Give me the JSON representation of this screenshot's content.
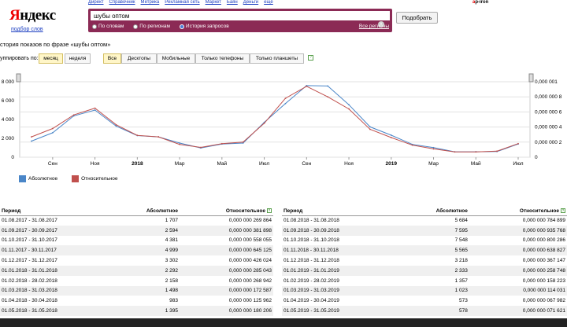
{
  "topnav": [
    "Директ",
    "Справочник",
    "Метрика",
    "Рекламная сеть",
    "Маркет",
    "Баян",
    "Деньги",
    "ещё"
  ],
  "user": "ap-iron",
  "logo": {
    "first": "Я",
    "rest": "ндекс",
    "sub": "подбор слов"
  },
  "search": {
    "value": "шубы оптом",
    "clear": "×",
    "radios": [
      "По словам",
      "По регионам",
      "История запросов"
    ],
    "selected_radio": "История запросов",
    "regions_link": "Все регионы",
    "button": "Подобрать"
  },
  "phrase_title": "стория показов по фразе «шубы оптом»",
  "group": {
    "label": "уппировать по:",
    "period": [
      "месяц",
      "неделя"
    ],
    "active_period": "месяц",
    "devices": [
      "Все",
      "Десктопы",
      "Мобильные",
      "Только телефоны",
      "Только планшеты"
    ],
    "active_device": "Все",
    "help": "?"
  },
  "chart_data": {
    "type": "line",
    "x": [
      "2017-08",
      "2017-09",
      "2017-10",
      "2017-11",
      "2017-12",
      "2018-01",
      "2018-02",
      "2018-03",
      "2018-04",
      "2018-05",
      "2018-06",
      "2018-07",
      "2018-08",
      "2018-09",
      "2018-10",
      "2018-11",
      "2018-12",
      "2019-01",
      "2019-02",
      "2019-03",
      "2019-04",
      "2019-05",
      "2019-06",
      "2019-07"
    ],
    "x_tick_labels": [
      "Сен",
      "Ноя",
      "2018",
      "Мар",
      "Май",
      "Июл",
      "Сен",
      "Ноя",
      "2019",
      "Мар",
      "Май",
      "Июл"
    ],
    "y_left_ticks": [
      "0",
      "2 000",
      "4 000",
      "6 000",
      "8 000"
    ],
    "y_right_ticks": [
      "0",
      "0,000 000 2",
      "0,000 000 4",
      "0,000 000 6",
      "0,000 000 8",
      "0,000 001"
    ],
    "ylim_left": [
      0,
      8000
    ],
    "ylim_right": [
      0,
      1e-06
    ],
    "series": [
      {
        "name": "Абсолютное",
        "color": "#4a86c8",
        "axis": "left",
        "values": [
          1707,
          2594,
          4381,
          4999,
          3302,
          2292,
          2158,
          1498,
          983,
          1395,
          1500,
          3700,
          5684,
          7595,
          7548,
          5565,
          3218,
          2333,
          1357,
          1023,
          573,
          578,
          600,
          1400
        ]
      },
      {
        "name": "Относительное",
        "color": "#c0504d",
        "axis": "right",
        "values": [
          2.7e-07,
          3.8e-07,
          5.6e-07,
          6.5e-07,
          4.3e-07,
          2.9e-07,
          2.7e-07,
          1.7e-07,
          1.3e-07,
          1.8e-07,
          2e-07,
          4.5e-07,
          7.8e-07,
          9.4e-07,
          8e-07,
          6.4e-07,
          3.7e-07,
          2.6e-07,
          1.6e-07,
          1.1e-07,
          7e-08,
          7e-08,
          8e-08,
          1.8e-07
        ]
      }
    ],
    "grid": "horizontal"
  },
  "table_headers": {
    "period": "Период",
    "abs": "Абсолютное",
    "rel": "Относительное",
    "help": "?"
  },
  "table_left": [
    [
      "01.08.2017 - 31.08.2017",
      "1 707",
      "0,000 000 269 864"
    ],
    [
      "01.09.2017 - 30.09.2017",
      "2 594",
      "0,000 000 381 898"
    ],
    [
      "01.10.2017 - 31.10.2017",
      "4 381",
      "0,000 000 558 055"
    ],
    [
      "01.11.2017 - 30.11.2017",
      "4 999",
      "0,000 000 645 125"
    ],
    [
      "01.12.2017 - 31.12.2017",
      "3 302",
      "0,000 000 426 024"
    ],
    [
      "01.01.2018 - 31.01.2018",
      "2 292",
      "0,000 000 285 043"
    ],
    [
      "01.02.2018 - 28.02.2018",
      "2 158",
      "0,000 000 268 942"
    ],
    [
      "01.03.2018 - 31.03.2018",
      "1 498",
      "0,000 000 172 587"
    ],
    [
      "01.04.2018 - 30.04.2018",
      "983",
      "0,000 000 125 962"
    ],
    [
      "01.05.2018 - 31.05.2018",
      "1 395",
      "0,000 000 180 206"
    ]
  ],
  "table_right": [
    [
      "01.08.2018 - 31.08.2018",
      "5 684",
      "0,000 000 784 899"
    ],
    [
      "01.09.2018 - 30.09.2018",
      "7 595",
      "0,000 000 935 768"
    ],
    [
      "01.10.2018 - 31.10.2018",
      "7 548",
      "0,000 000 800 286"
    ],
    [
      "01.11.2018 - 30.11.2018",
      "5 565",
      "0,000 000 638 827"
    ],
    [
      "01.12.2018 - 31.12.2018",
      "3 218",
      "0,000 000 367 147"
    ],
    [
      "01.01.2019 - 31.01.2019",
      "2 333",
      "0,000 000 258 748"
    ],
    [
      "01.02.2019 - 28.02.2019",
      "1 357",
      "0,000 000 158 223"
    ],
    [
      "01.03.2019 - 31.03.2019",
      "1 023",
      "0,000 000 114 031"
    ],
    [
      "01.04.2019 - 30.04.2019",
      "573",
      "0,000 000 067 982"
    ],
    [
      "01.05.2019 - 31.05.2019",
      "578",
      "0,000 000 071 621"
    ]
  ]
}
